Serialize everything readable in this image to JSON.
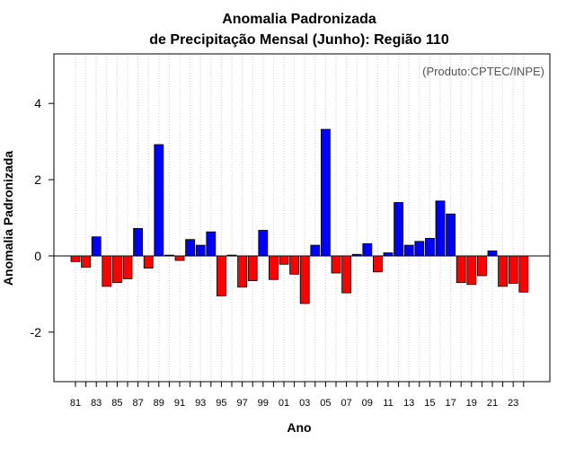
{
  "chart_data": {
    "type": "bar",
    "title_line1": "Anomalia Padronizada",
    "title_line2": "de Precipitação Mensal (Junho): Região 110",
    "credit": "(Produto:CPTEC/INPE)",
    "xlabel": "Ano",
    "ylabel": "Anomalia Padronizada",
    "ylim": [
      -3.3,
      5.3
    ],
    "yticks": [
      -2,
      0,
      2,
      4
    ],
    "ytick_labels": [
      "-2",
      "0",
      "2",
      "4"
    ],
    "categories": [
      "81",
      "82",
      "83",
      "84",
      "85",
      "86",
      "87",
      "88",
      "89",
      "90",
      "91",
      "92",
      "93",
      "94",
      "95",
      "96",
      "97",
      "98",
      "99",
      "00",
      "01",
      "02",
      "03",
      "04",
      "05",
      "06",
      "07",
      "08",
      "09",
      "10",
      "11",
      "12",
      "13",
      "14",
      "15",
      "16",
      "17",
      "18",
      "19",
      "20",
      "21",
      "22",
      "23",
      "24"
    ],
    "xtick_labels": [
      "81",
      "83",
      "85",
      "87",
      "89",
      "91",
      "93",
      "95",
      "97",
      "99",
      "01",
      "03",
      "05",
      "07",
      "09",
      "11",
      "13",
      "15",
      "17",
      "19",
      "21",
      "23"
    ],
    "values": [
      -0.15,
      -0.3,
      0.5,
      -0.8,
      -0.7,
      -0.6,
      0.72,
      -0.32,
      2.92,
      0.02,
      -0.12,
      0.43,
      0.28,
      0.63,
      -1.05,
      0.02,
      -0.82,
      -0.65,
      0.67,
      -0.62,
      -0.22,
      -0.48,
      -1.25,
      0.28,
      3.32,
      -0.45,
      -0.97,
      0.04,
      0.32,
      -0.42,
      0.08,
      1.4,
      0.28,
      0.38,
      0.46,
      1.44,
      1.1,
      -0.7,
      -0.75,
      -0.52,
      0.13,
      -0.8,
      -0.72,
      -0.95
    ],
    "colors": {
      "positive": "#0000ff",
      "negative": "#ff0000",
      "grid": "#cccccc",
      "axis": "#000000"
    },
    "grid": "vertical-dotted"
  }
}
